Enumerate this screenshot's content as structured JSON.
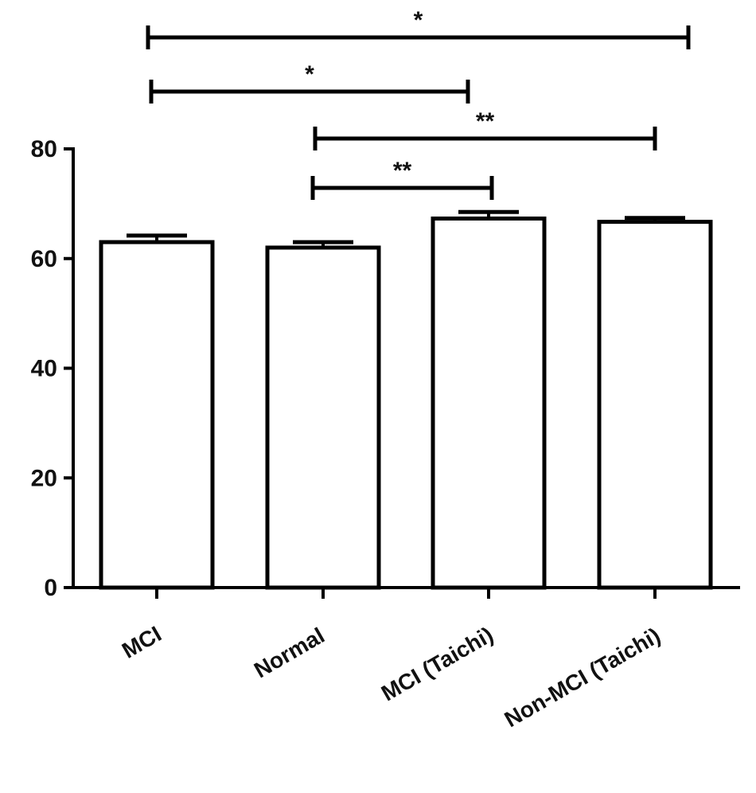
{
  "chart_data": {
    "type": "bar",
    "categories": [
      "MCI",
      "Normal",
      "MCI (Taichi)",
      "Non-MCI (Taichi)"
    ],
    "values": [
      63,
      62,
      67.3,
      66.7
    ],
    "errors": [
      1.2,
      1.0,
      1.2,
      0.7
    ],
    "ylim": [
      0,
      80
    ],
    "yticks": [
      0,
      20,
      40,
      60,
      80
    ],
    "title": "",
    "xlabel": "",
    "ylabel": "",
    "bar_fill": "#ffffff",
    "bar_stroke": "#000000",
    "significance": [
      {
        "from": 0,
        "to": 3,
        "label": "*"
      },
      {
        "from": 0,
        "to": 2,
        "label": "*"
      },
      {
        "from": 1,
        "to": 3,
        "label": "**"
      },
      {
        "from": 1,
        "to": 2,
        "label": "**"
      }
    ]
  }
}
